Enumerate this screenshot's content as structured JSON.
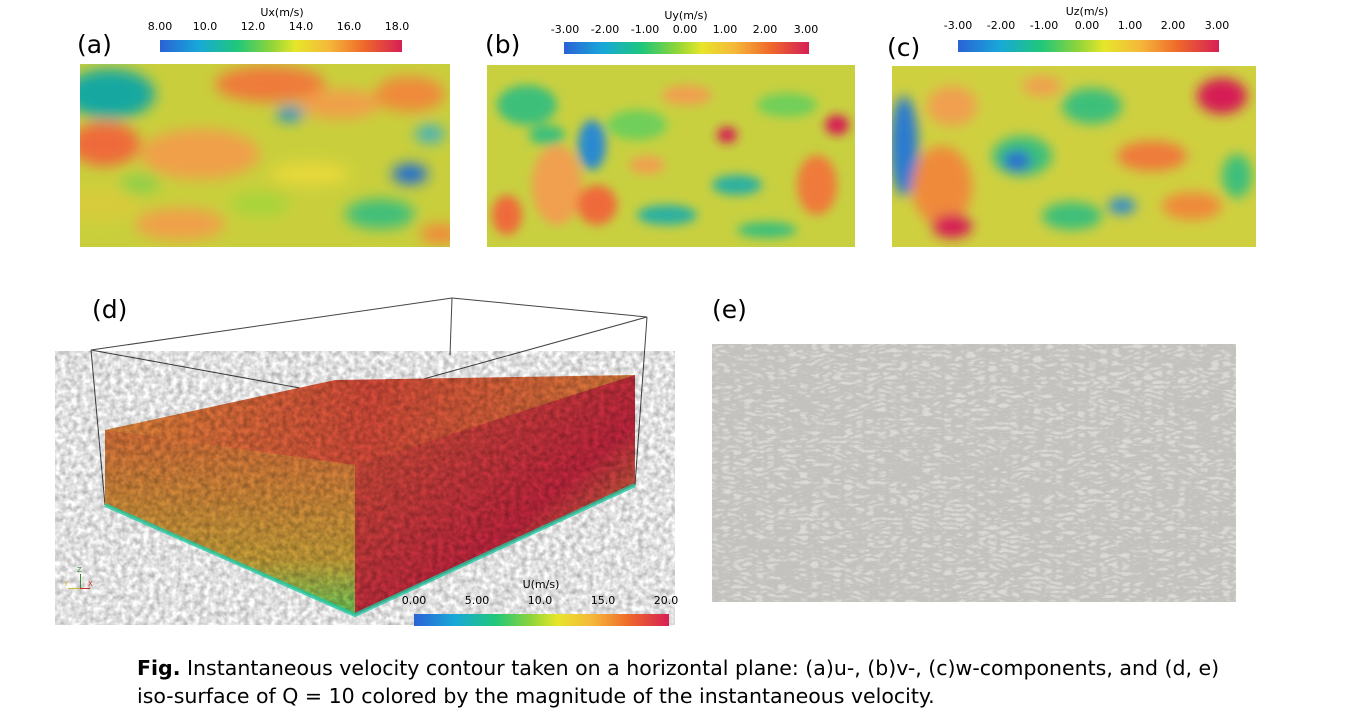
{
  "panels": {
    "a": {
      "label": "(a)"
    },
    "b": {
      "label": "(b)"
    },
    "c": {
      "label": "(c)"
    },
    "d": {
      "label": "(d)"
    },
    "e": {
      "label": "(e)"
    }
  },
  "colorbars": {
    "ux": {
      "title": "Ux(m/s)",
      "ticks": [
        "8.00",
        "10.0",
        "12.0",
        "14.0",
        "16.0",
        "18.0"
      ]
    },
    "uy": {
      "title": "Uy(m/s)",
      "ticks": [
        "-3.00",
        "-2.00",
        "-1.00",
        "0.00",
        "1.00",
        "2.00",
        "3.00"
      ]
    },
    "uz": {
      "title": "Uz(m/s)",
      "ticks": [
        "-3.00",
        "-2.00",
        "-1.00",
        "0.00",
        "1.00",
        "2.00",
        "3.00"
      ]
    },
    "u": {
      "title": "U(m/s)",
      "ticks": [
        "0.00",
        "5.00",
        "10.0",
        "15.0",
        "20.0"
      ]
    }
  },
  "axes_triad": {
    "z": "Z",
    "y": "Y",
    "x": "X"
  },
  "caption": {
    "prefix": "Fig.",
    "text": " Instantaneous velocity contour taken on a horizontal plane: (a)u-, (b)v-,  (c)w-components, and (d, e) iso-surface of Q = 10 colored by the magnitude of the instantaneous velocity."
  },
  "colors": {
    "blue": "#2a62d6",
    "cyan": "#18a8d8",
    "green": "#20c77a",
    "lime": "#8fd43a",
    "yellow": "#e6e62a",
    "orange": "#f5b73a",
    "red": "#ef6a2a",
    "crimson": "#d61f55",
    "iso_gray": "#d9d7d2"
  }
}
